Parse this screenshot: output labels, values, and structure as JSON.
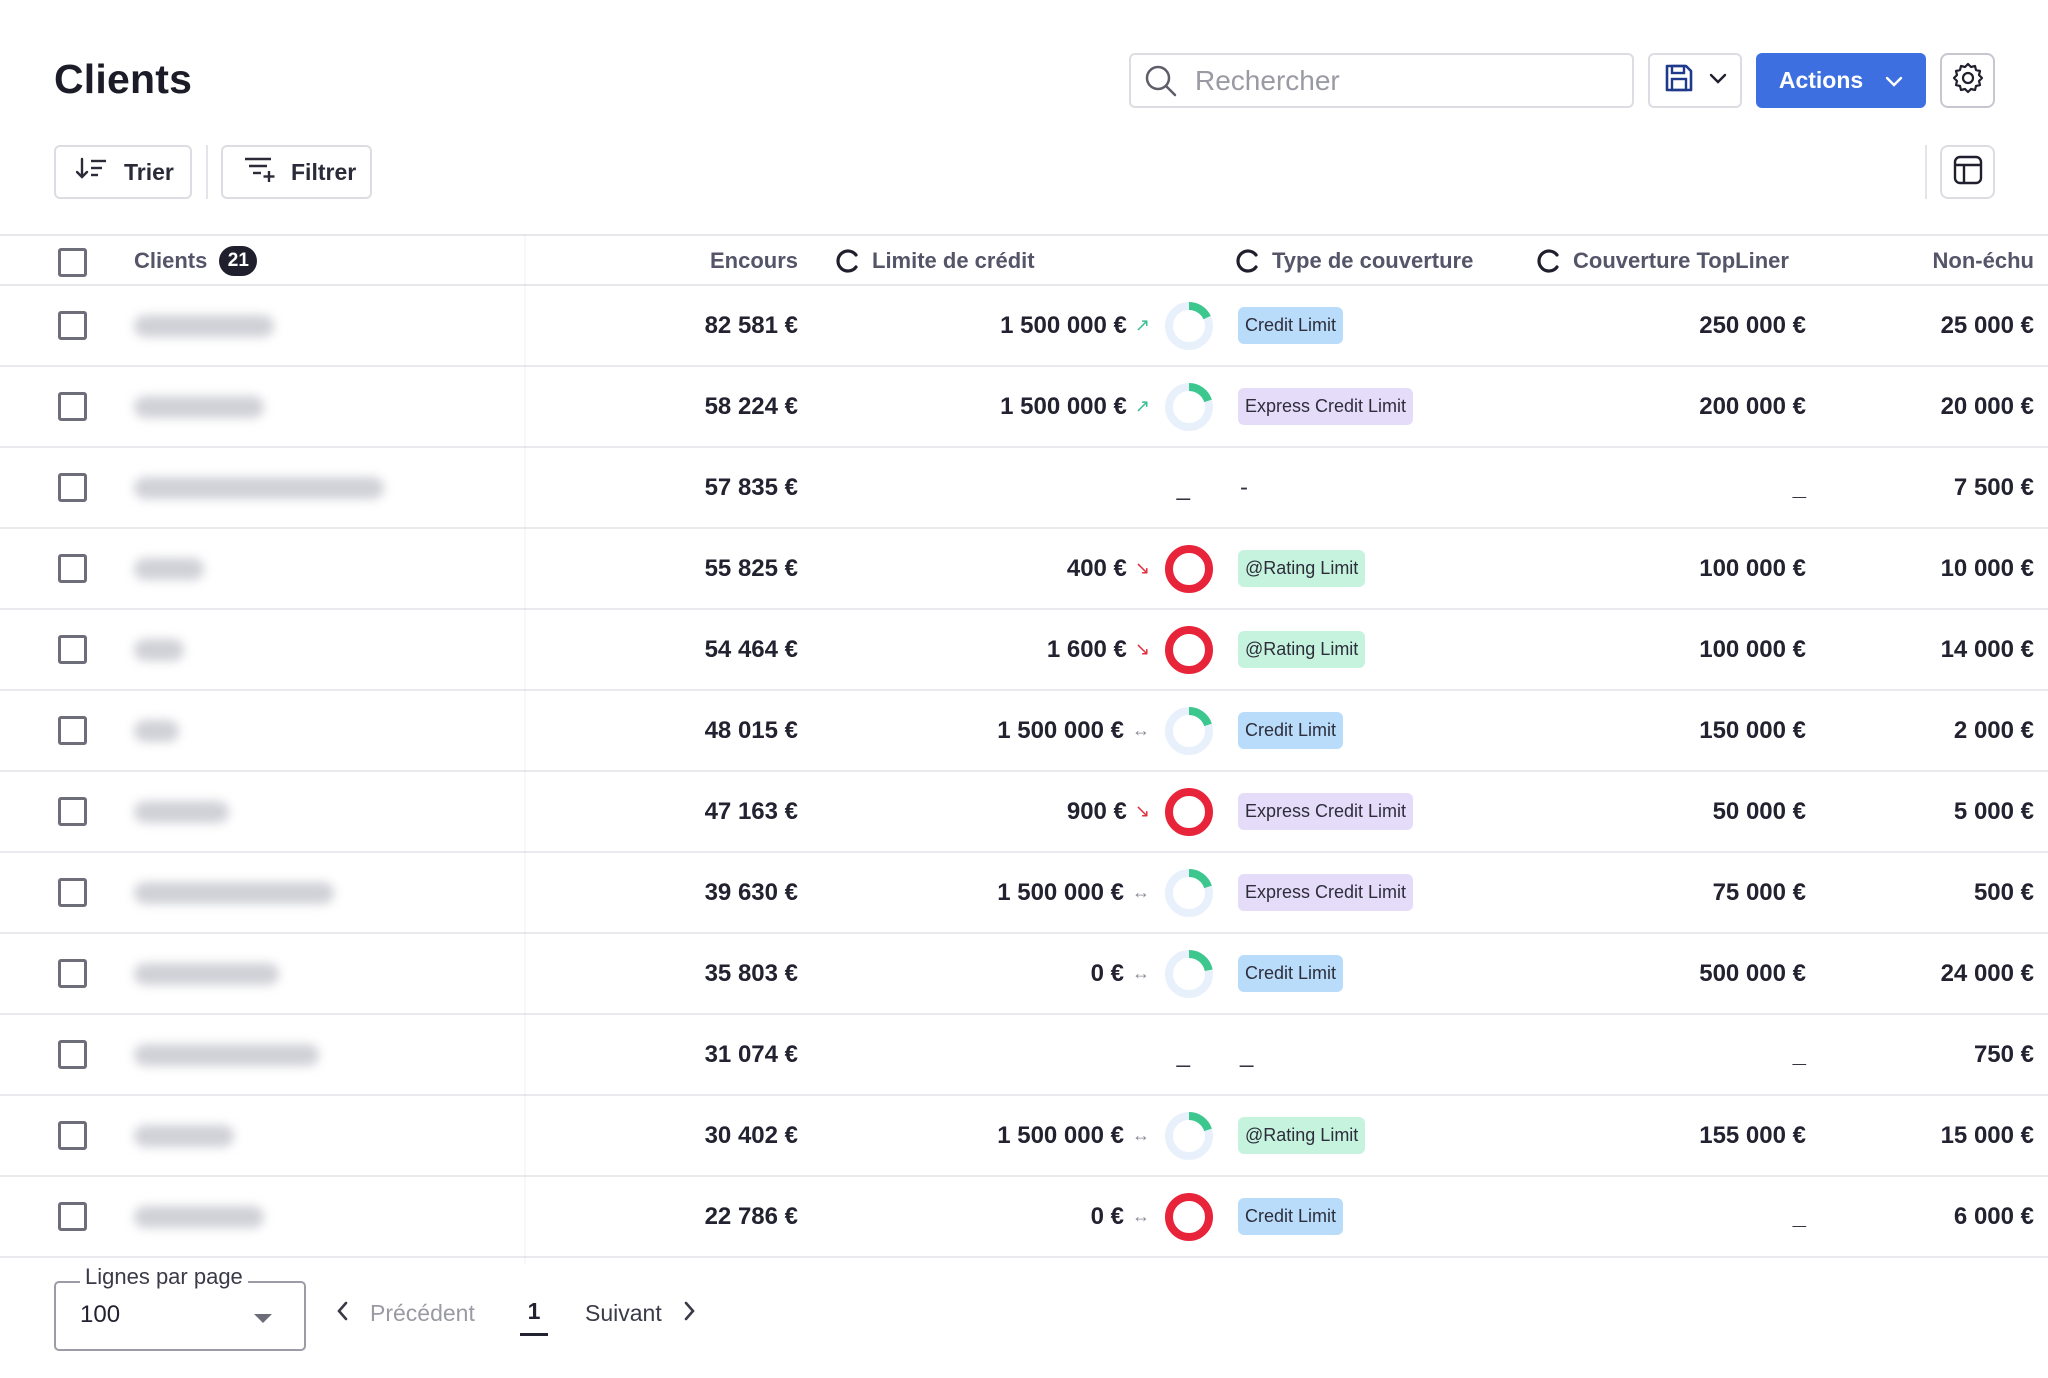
{
  "header": {
    "title": "Clients",
    "search_placeholder": "Rechercher",
    "actions_label": "Actions"
  },
  "toolbar": {
    "sort_label": "Trier",
    "filter_label": "Filtrer"
  },
  "table": {
    "columns": {
      "clients": "Clients",
      "clients_count": "21",
      "encours": "Encours",
      "limite": "Limite de crédit",
      "type": "Type de couverture",
      "topliner": "Couverture TopLiner",
      "non_echu": "Non-échu"
    },
    "rows": [
      {
        "encours": "82 581 €",
        "limite": "1 500 000 €",
        "trend": "up",
        "usage": 0.18,
        "type": "Credit Limit",
        "type_kind": "credit",
        "topliner": "250 000 €",
        "non_echu": "25 000 €"
      },
      {
        "encours": "58 224 €",
        "limite": "1 500 000 €",
        "trend": "up",
        "usage": 0.2,
        "type": "Express Credit Limit",
        "type_kind": "express",
        "topliner": "200 000 €",
        "non_echu": "20 000 €"
      },
      {
        "encours": "57 835 €",
        "limite": "_",
        "trend": "",
        "usage": null,
        "type": "-",
        "type_kind": "",
        "topliner": "_",
        "non_echu": "7 500 €"
      },
      {
        "encours": "55 825 €",
        "limite": "400 €",
        "trend": "down",
        "usage": 1.0,
        "type": "@Rating Limit",
        "type_kind": "rating",
        "topliner": "100 000 €",
        "non_echu": "10 000 €"
      },
      {
        "encours": "54 464 €",
        "limite": "1 600 €",
        "trend": "down",
        "usage": 1.0,
        "type": "@Rating Limit",
        "type_kind": "rating",
        "topliner": "100 000 €",
        "non_echu": "14 000 €"
      },
      {
        "encours": "48 015 €",
        "limite": "1 500 000 €",
        "trend": "flat",
        "usage": 0.2,
        "type": "Credit Limit",
        "type_kind": "credit",
        "topliner": "150 000 €",
        "non_echu": "2 000 €"
      },
      {
        "encours": "47 163 €",
        "limite": "900 €",
        "trend": "down",
        "usage": 1.0,
        "type": "Express Credit Limit",
        "type_kind": "express",
        "topliner": "50 000 €",
        "non_echu": "5 000 €"
      },
      {
        "encours": "39 630 €",
        "limite": "1 500 000 €",
        "trend": "flat",
        "usage": 0.2,
        "type": "Express Credit Limit",
        "type_kind": "express",
        "topliner": "75 000 €",
        "non_echu": "500 €"
      },
      {
        "encours": "35 803 €",
        "limite": "0 €",
        "trend": "flat",
        "usage": 0.22,
        "type": "Credit Limit",
        "type_kind": "credit",
        "topliner": "500 000 €",
        "non_echu": "24 000 €"
      },
      {
        "encours": "31 074 €",
        "limite": "_",
        "trend": "",
        "usage": null,
        "type": "_",
        "type_kind": "",
        "topliner": "_",
        "non_echu": "750 €"
      },
      {
        "encours": "30 402 €",
        "limite": "1 500 000 €",
        "trend": "flat",
        "usage": 0.2,
        "type": "@Rating Limit",
        "type_kind": "rating",
        "topliner": "155 000 €",
        "non_echu": "15 000 €"
      },
      {
        "encours": "22 786 €",
        "limite": "0 €",
        "trend": "flat",
        "usage": 1.0,
        "type": "Credit Limit",
        "type_kind": "credit",
        "topliner": "_",
        "non_echu": "6 000 €"
      }
    ]
  },
  "tag_colors": {
    "credit": "#b9dcfb",
    "express": "#e5dcfa",
    "rating": "#c6f3de"
  },
  "trend_symbols": {
    "up": "↗",
    "down": "↘",
    "flat": "↔"
  },
  "donut_colors": {
    "ok_fill": "#3cc78f",
    "ok_track": "#e8f1fb",
    "over": "#e8243a"
  },
  "footer": {
    "rows_per_page_label": "Lignes par page",
    "rows_per_page_value": "100",
    "prev_label": "Précédent",
    "page": "1",
    "next_label": "Suivant"
  }
}
